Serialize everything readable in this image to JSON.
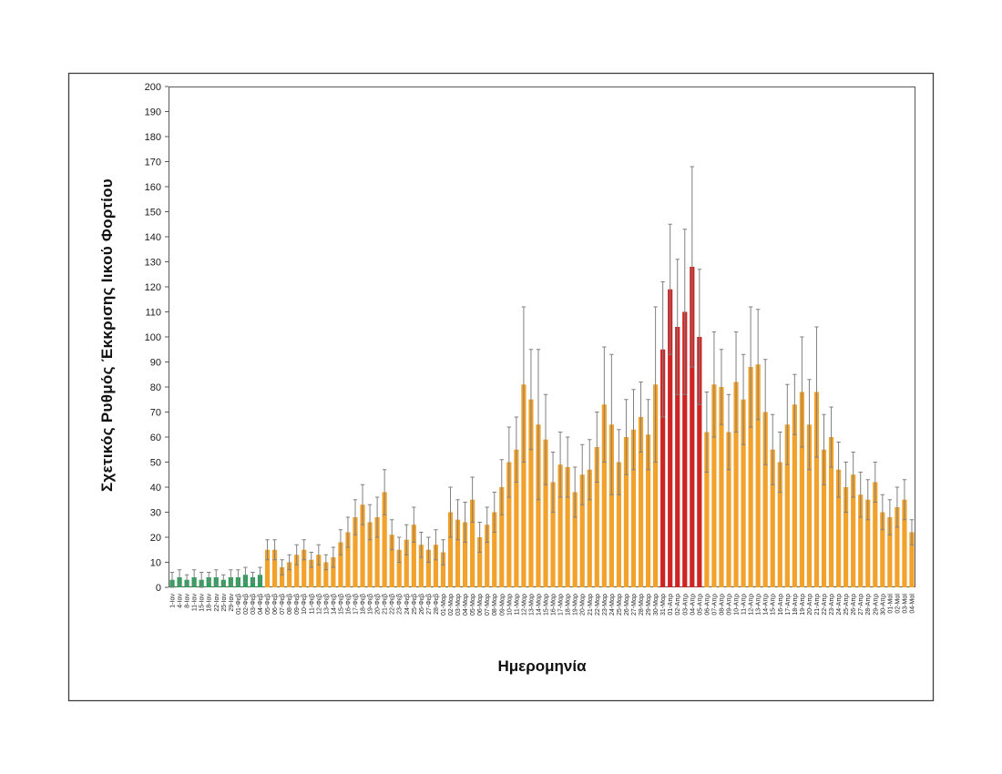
{
  "chart_data": {
    "type": "bar",
    "title": "",
    "ylabel": "Σχετικός Ρυθμός Έκκρισης Ιικού Φορτίου",
    "xlabel": "Ημερομηνία",
    "ylim": [
      0,
      200
    ],
    "y_tick_step": 10,
    "grid": false,
    "legend": "none",
    "error_bars": "symmetric, clamped at 0, gray whiskers with caps",
    "palette": {
      "green": "#2BA05A",
      "orange": "#F2A22B",
      "red": "#CE2424",
      "error": "#808080",
      "axis": "#595959",
      "frame": "#3F3F3F",
      "tick_text": "#1A1A1A",
      "xlabel_text": "#262626"
    },
    "color_segments": [
      {
        "from": 0,
        "to": 12,
        "color": "green"
      },
      {
        "from": 13,
        "to": 66,
        "color": "orange"
      },
      {
        "from": 67,
        "to": 72,
        "color": "red"
      },
      {
        "from": 73,
        "to": 101,
        "color": "orange"
      }
    ],
    "categories": [
      "1-Ιαν",
      "4-Ιαν",
      "8-Ιαν",
      "11-Ιαν",
      "15-Ιαν",
      "18-Ιαν",
      "22-Ιαν",
      "25-Ιαν",
      "29-Ιαν",
      "01-Φεβ",
      "02-Φεβ",
      "03-Φεβ",
      "04-Φεβ",
      "05-Φεβ",
      "06-Φεβ",
      "07-Φεβ",
      "08-Φεβ",
      "09-Φεβ",
      "10-Φεβ",
      "11-Φεβ",
      "12-Φεβ",
      "13-Φεβ",
      "14-Φεβ",
      "15-Φεβ",
      "16-Φεβ",
      "17-Φεβ",
      "18-Φεβ",
      "19-Φεβ",
      "20-Φεβ",
      "21-Φεβ",
      "22-Φεβ",
      "23-Φεβ",
      "24-Φεβ",
      "25-Φεβ",
      "26-Φεβ",
      "27-Φεβ",
      "28-Φεβ",
      "01-Μαρ",
      "02-Μαρ",
      "03-Μαρ",
      "04-Μαρ",
      "05-Μαρ",
      "06-Μαρ",
      "07-Μαρ",
      "08-Μαρ",
      "09-Μαρ",
      "10-Μαρ",
      "11-Μαρ",
      "12-Μαρ",
      "13-Μαρ",
      "14-Μαρ",
      "15-Μαρ",
      "16-Μαρ",
      "17-Μαρ",
      "18-Μαρ",
      "19-Μαρ",
      "20-Μαρ",
      "21-Μαρ",
      "22-Μαρ",
      "23-Μαρ",
      "24-Μαρ",
      "25-Μαρ",
      "26-Μαρ",
      "27-Μαρ",
      "28-Μαρ",
      "29-Μαρ",
      "30-Μαρ",
      "31-Μαρ",
      "01-Απρ",
      "02-Απρ",
      "03-Απρ",
      "04-Απρ",
      "05-Απρ",
      "06-Απρ",
      "07-Απρ",
      "08-Απρ",
      "09-Απρ",
      "10-Απρ",
      "11-Απρ",
      "12-Απρ",
      "13-Απρ",
      "14-Απρ",
      "15-Απρ",
      "16-Απρ",
      "17-Απρ",
      "18-Απρ",
      "19-Απρ",
      "20-Απρ",
      "21-Απρ",
      "22-Απρ",
      "23-Απρ",
      "24-Απρ",
      "25-Απρ",
      "26-Απρ",
      "27-Απρ",
      "28-Απρ",
      "29-Απρ",
      "30-Απρ",
      "01-Μαϊ",
      "02-Μαϊ",
      "03-Μαϊ",
      "04-Μαϊ"
    ],
    "values": [
      3,
      4,
      3,
      4,
      3,
      4,
      4,
      3,
      4,
      4,
      5,
      4,
      5,
      15,
      15,
      8,
      10,
      13,
      15,
      11,
      13,
      10,
      12,
      18,
      22,
      28,
      33,
      26,
      28,
      38,
      21,
      15,
      19,
      25,
      17,
      15,
      17,
      14,
      30,
      27,
      26,
      35,
      20,
      25,
      30,
      40,
      50,
      55,
      81,
      75,
      65,
      59,
      42,
      49,
      48,
      38,
      45,
      47,
      56,
      73,
      65,
      50,
      60,
      63,
      68,
      61,
      81,
      95,
      119,
      104,
      110,
      128,
      100,
      62,
      81,
      80,
      62,
      82,
      75,
      88,
      89,
      70,
      55,
      50,
      65,
      73,
      78,
      65,
      78,
      55,
      60,
      47,
      40,
      45,
      37,
      35,
      42,
      30,
      28,
      32,
      35,
      22
    ],
    "errors": [
      3,
      3,
      2,
      3,
      3,
      2,
      3,
      2,
      3,
      3,
      3,
      2,
      3,
      4,
      4,
      3,
      3,
      4,
      4,
      3,
      4,
      3,
      4,
      5,
      6,
      7,
      8,
      7,
      8,
      9,
      6,
      5,
      6,
      7,
      5,
      5,
      6,
      5,
      10,
      8,
      8,
      9,
      6,
      7,
      8,
      11,
      14,
      13,
      31,
      20,
      30,
      18,
      12,
      13,
      12,
      10,
      12,
      12,
      14,
      23,
      28,
      13,
      15,
      16,
      14,
      14,
      31,
      27,
      26,
      27,
      33,
      40,
      27,
      16,
      21,
      15,
      15,
      20,
      18,
      24,
      22,
      21,
      14,
      12,
      16,
      12,
      22,
      18,
      26,
      14,
      12,
      11,
      10,
      9,
      9,
      8,
      8,
      7,
      7,
      8,
      8,
      5
    ]
  }
}
